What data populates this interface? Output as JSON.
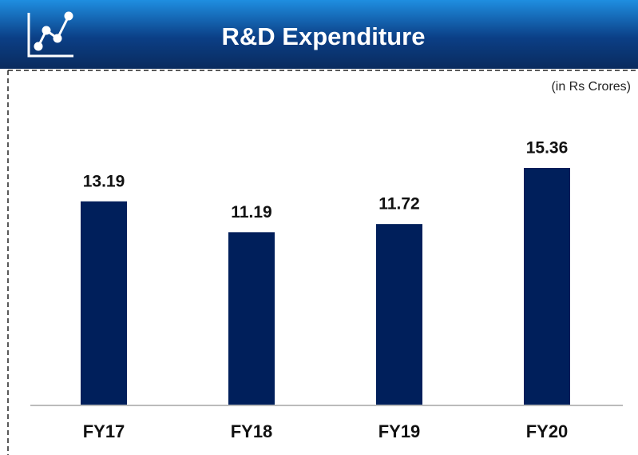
{
  "chart_data": {
    "type": "bar",
    "title": "R&D Expenditure",
    "subtitle": "(in Rs Crores)",
    "categories": [
      "FY17",
      "FY18",
      "FY19",
      "FY20"
    ],
    "values": [
      13.19,
      11.19,
      11.72,
      15.36
    ],
    "color": "#001f5b"
  }
}
